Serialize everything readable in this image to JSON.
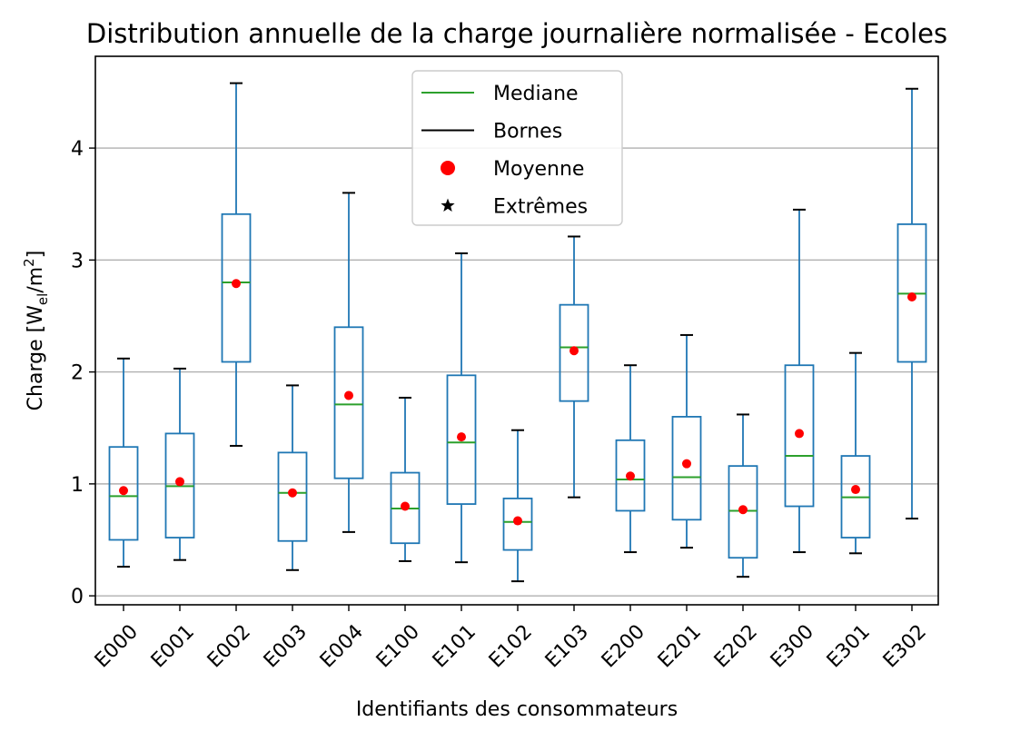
{
  "chart_data": {
    "type": "box",
    "title": "Distribution annuelle de la charge journalière normalisée - Ecoles",
    "xlabel": "Identifiants des consommateurs",
    "ylabel_main": "Charge [W",
    "ylabel_sub": "el",
    "ylabel_mid": "/m",
    "ylabel_sup": "2",
    "ylabel_end": "]",
    "ylim": [
      -0.08,
      4.82
    ],
    "yticks": [
      0,
      1,
      2,
      3,
      4
    ],
    "ytick_labels": [
      "0",
      "1",
      "2",
      "3",
      "4"
    ],
    "grid": "y",
    "legend_position": "top-center",
    "colors": {
      "box": "#1f77b4",
      "median": "#2ca02c",
      "bounds": "#000000",
      "mean": "#ff0000",
      "grid": "#b0b0b0"
    },
    "legend": [
      {
        "label": "Mediane",
        "kind": "line",
        "color": "#2ca02c"
      },
      {
        "label": "Bornes",
        "kind": "line",
        "color": "#000000"
      },
      {
        "label": "Moyenne",
        "kind": "dot",
        "color": "#ff0000"
      },
      {
        "label": "Extrêmes",
        "kind": "star",
        "color": "#000000"
      }
    ],
    "boxes": [
      {
        "label": "E000",
        "min": 0.26,
        "q1": 0.5,
        "median": 0.89,
        "q3": 1.33,
        "max": 2.12,
        "mean": 0.94
      },
      {
        "label": "E001",
        "min": 0.32,
        "q1": 0.52,
        "median": 0.98,
        "q3": 1.45,
        "max": 2.03,
        "mean": 1.02
      },
      {
        "label": "E002",
        "min": 1.34,
        "q1": 2.09,
        "median": 2.8,
        "q3": 3.41,
        "max": 4.58,
        "mean": 2.79
      },
      {
        "label": "E003",
        "min": 0.23,
        "q1": 0.49,
        "median": 0.92,
        "q3": 1.28,
        "max": 1.88,
        "mean": 0.92
      },
      {
        "label": "E004",
        "min": 0.57,
        "q1": 1.05,
        "median": 1.71,
        "q3": 2.4,
        "max": 3.6,
        "mean": 1.79
      },
      {
        "label": "E100",
        "min": 0.31,
        "q1": 0.47,
        "median": 0.78,
        "q3": 1.1,
        "max": 1.77,
        "mean": 0.8
      },
      {
        "label": "E101",
        "min": 0.3,
        "q1": 0.82,
        "median": 1.37,
        "q3": 1.97,
        "max": 3.06,
        "mean": 1.42
      },
      {
        "label": "E102",
        "min": 0.13,
        "q1": 0.41,
        "median": 0.66,
        "q3": 0.87,
        "max": 1.48,
        "mean": 0.67
      },
      {
        "label": "E103",
        "min": 0.88,
        "q1": 1.74,
        "median": 2.22,
        "q3": 2.6,
        "max": 3.21,
        "mean": 2.19
      },
      {
        "label": "E200",
        "min": 0.39,
        "q1": 0.76,
        "median": 1.04,
        "q3": 1.39,
        "max": 2.06,
        "mean": 1.07
      },
      {
        "label": "E201",
        "min": 0.43,
        "q1": 0.68,
        "median": 1.06,
        "q3": 1.6,
        "max": 2.33,
        "mean": 1.18
      },
      {
        "label": "E202",
        "min": 0.17,
        "q1": 0.34,
        "median": 0.76,
        "q3": 1.16,
        "max": 1.62,
        "mean": 0.77
      },
      {
        "label": "E300",
        "min": 0.39,
        "q1": 0.8,
        "median": 1.25,
        "q3": 2.06,
        "max": 3.45,
        "mean": 1.45
      },
      {
        "label": "E301",
        "min": 0.38,
        "q1": 0.52,
        "median": 0.88,
        "q3": 1.25,
        "max": 2.17,
        "mean": 0.95
      },
      {
        "label": "E302",
        "min": 0.69,
        "q1": 2.09,
        "median": 2.7,
        "q3": 3.32,
        "max": 4.53,
        "mean": 2.67
      }
    ]
  }
}
